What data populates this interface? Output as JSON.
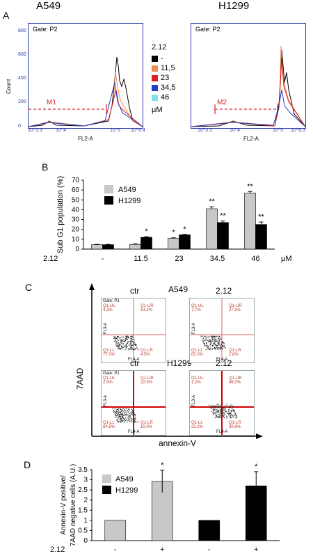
{
  "panels": {
    "A": "A",
    "B": "B",
    "C": "C",
    "D": "D"
  },
  "panelA": {
    "left_title": "A549",
    "right_title": "H1299",
    "left_gate": "Gate: P2",
    "right_gate": "Gate: P2",
    "ylabel": "Count",
    "xlabel": "FL2-A",
    "left_marker": "M1",
    "right_marker": "M2",
    "left_yticks": [
      "0",
      "200",
      "400",
      "600",
      "800"
    ],
    "left_xticks": [
      "10^3.3",
      "10^4",
      "10^5",
      "10^6.4"
    ],
    "right_xticks": [
      "10^3.3",
      "10^4",
      "10^5",
      "10^6.3"
    ],
    "legend_title": "2.12",
    "legend_items": [
      {
        "label": "-",
        "color": "#000000"
      },
      {
        "label": "11,5",
        "color": "#f08a52"
      },
      {
        "label": "23",
        "color": "#e02020"
      },
      {
        "label": "34,5",
        "color": "#2040c8"
      },
      {
        "label": "46",
        "color": "#7fe0ea"
      }
    ],
    "legend_unit": "μM"
  },
  "chart_data": [
    {
      "type": "bar",
      "panel": "B",
      "ylabel": "Sub G1 population (%)",
      "ylim": [
        0,
        70
      ],
      "yticks": [
        0,
        10,
        20,
        30,
        40,
        50,
        60,
        70
      ],
      "categories": [
        "-",
        "11.5",
        "23",
        "34.5",
        "46"
      ],
      "x_prefix": "2.12",
      "x_unit": "μM",
      "series": [
        {
          "name": "A549",
          "color": "#c8c8c8",
          "values": [
            4.5,
            4.8,
            11,
            41,
            57
          ],
          "errors": [
            0.3,
            0.5,
            0.5,
            2,
            1.5
          ],
          "sig": [
            "",
            "",
            "*",
            "**",
            "**"
          ]
        },
        {
          "name": "H1299",
          "color": "#000000",
          "values": [
            4.5,
            12,
            14.5,
            27,
            25
          ],
          "errors": [
            0.3,
            0.6,
            0.5,
            1.5,
            2.5
          ],
          "sig": [
            "",
            "*",
            "*",
            "**",
            "**"
          ]
        }
      ]
    },
    {
      "type": "bar",
      "panel": "D",
      "ylabel_line1": "Annexin-V positive/",
      "ylabel_line2": "7AAD negative cells (A.U.)",
      "ylim": [
        0,
        3.5
      ],
      "yticks": [
        "0",
        "0.5",
        "1",
        "1.5",
        "2",
        "2.5",
        "3",
        "3.5"
      ],
      "categories": [
        "-",
        "+",
        "-",
        "+"
      ],
      "x_prefix": "2.12",
      "bars": [
        {
          "series": "A549",
          "value": 1,
          "error": 0,
          "sig": ""
        },
        {
          "series": "A549",
          "value": 2.92,
          "error": 0.55,
          "sig": "*"
        },
        {
          "series": "H1299",
          "value": 1,
          "error": 0,
          "sig": ""
        },
        {
          "series": "H1299",
          "value": 2.7,
          "error": 0.7,
          "sig": "*"
        }
      ],
      "legend": [
        {
          "name": "A549",
          "color": "#c8c8c8"
        },
        {
          "name": "H1299",
          "color": "#000000"
        }
      ]
    }
  ],
  "panelC": {
    "yaxis": "7AAD",
    "xaxis": "annexin-V",
    "row1_title": "A549",
    "row2_title": "H1299",
    "plots": [
      {
        "cond": "ctr",
        "gate": "Gate: P1",
        "ul": "Q1-UL",
        "ul_v": "4.3%",
        "ur": "Q1-UR",
        "ur_v": "14.2%",
        "ll": "Q1-LL",
        "ll_v": "77.0%",
        "lr": "Q1-LR",
        "lr_v": "4.5%"
      },
      {
        "cond": "2.12",
        "gate": "",
        "ul": "Q1-UL",
        "ul_v": "7.7%",
        "ur": "Q1-UR",
        "ur_v": "27.5%",
        "ll": "Q1-LL",
        "ll_v": "62.0%",
        "lr": "Q1-LR",
        "lr_v": "2.8%"
      },
      {
        "cond": "ctr",
        "gate": "Gate: P1",
        "ul": "Q1-UL",
        "ul_v": "2.9%",
        "ur": "Q1-UR",
        "ur_v": "22.3%",
        "ll": "Q1-LL",
        "ll_v": "64.8%",
        "lr": "Q1-LR",
        "lr_v": "10.0%"
      },
      {
        "cond": "2.12",
        "gate": "",
        "ul": "Q1-UL",
        "ul_v": "1.2%",
        "ur": "Q1-UR",
        "ur_v": "46.0%",
        "ll": "Q1-LL",
        "ll_v": "22.2%",
        "lr": "Q1-LR",
        "lr_v": "30.6%"
      }
    ],
    "axis_small_x": "FL4-A",
    "axis_small_y": "FL3-A"
  }
}
